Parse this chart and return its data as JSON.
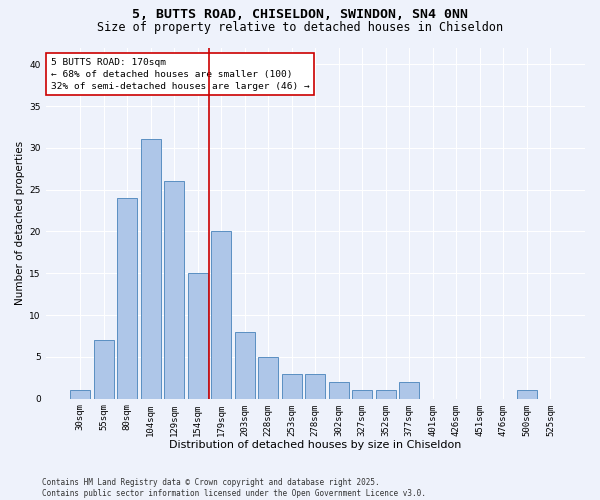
{
  "title": "5, BUTTS ROAD, CHISELDON, SWINDON, SN4 0NN",
  "subtitle": "Size of property relative to detached houses in Chiseldon",
  "xlabel": "Distribution of detached houses by size in Chiseldon",
  "ylabel": "Number of detached properties",
  "categories": [
    "30sqm",
    "55sqm",
    "80sqm",
    "104sqm",
    "129sqm",
    "154sqm",
    "179sqm",
    "203sqm",
    "228sqm",
    "253sqm",
    "278sqm",
    "302sqm",
    "327sqm",
    "352sqm",
    "377sqm",
    "401sqm",
    "426sqm",
    "451sqm",
    "476sqm",
    "500sqm",
    "525sqm"
  ],
  "values": [
    1,
    7,
    24,
    31,
    26,
    15,
    20,
    8,
    5,
    3,
    3,
    2,
    1,
    1,
    2,
    0,
    0,
    0,
    0,
    1,
    0
  ],
  "bar_color": "#aec6e8",
  "bar_edge_color": "#5a8fc2",
  "background_color": "#eef2fb",
  "grid_color": "#ffffff",
  "red_line_index": 5.5,
  "annotation_text": "5 BUTTS ROAD: 170sqm\n← 68% of detached houses are smaller (100)\n32% of semi-detached houses are larger (46) →",
  "annotation_box_color": "#ffffff",
  "annotation_box_edge": "#cc0000",
  "red_line_color": "#cc0000",
  "ylim": [
    0,
    42
  ],
  "yticks": [
    0,
    5,
    10,
    15,
    20,
    25,
    30,
    35,
    40
  ],
  "footer": "Contains HM Land Registry data © Crown copyright and database right 2025.\nContains public sector information licensed under the Open Government Licence v3.0.",
  "title_fontsize": 9.5,
  "subtitle_fontsize": 8.5,
  "xlabel_fontsize": 8,
  "ylabel_fontsize": 7.5,
  "tick_fontsize": 6.5,
  "annot_fontsize": 6.8,
  "footer_fontsize": 5.5
}
